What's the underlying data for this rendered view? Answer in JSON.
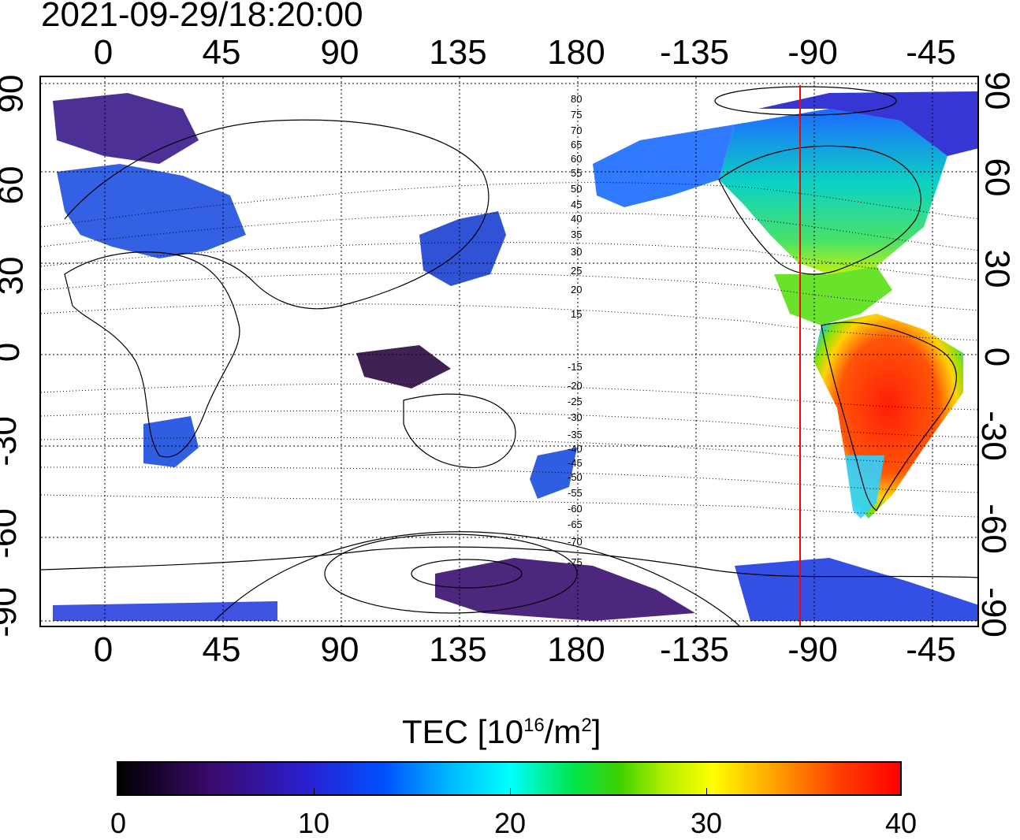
{
  "header": {
    "timestamp": "2021-09-29/18:20:00"
  },
  "x_ticks": [
    "0",
    "45",
    "90",
    "135",
    "180",
    "-135",
    "-90",
    "-45"
  ],
  "y_ticks_left": [
    "90",
    "60",
    "30",
    "0",
    "-30",
    "-60",
    "-90"
  ],
  "y_ticks_right": [
    "90",
    "60",
    "30",
    "0",
    "-30",
    "-60",
    "-90"
  ],
  "contour_labels": [
    "80",
    "75",
    "70",
    "65",
    "60",
    "55",
    "50",
    "45",
    "40",
    "35",
    "30",
    "25",
    "20",
    "15",
    "-15",
    "-20",
    "-25",
    "-30",
    "-35",
    "-40",
    "-45",
    "-50",
    "-55",
    "-60",
    "-65",
    "-70",
    "-75"
  ],
  "terminator_longitude": -95,
  "colorbar": {
    "label_main": "TEC  [10",
    "label_exp1": "16",
    "label_mid": "/m",
    "label_exp2": "2",
    "label_end": "]",
    "ticks": [
      "0",
      "10",
      "20",
      "30",
      "40"
    ],
    "min": 0,
    "max": 40
  },
  "colors": {
    "terminator": "#ff0000",
    "grid": "#000000"
  }
}
